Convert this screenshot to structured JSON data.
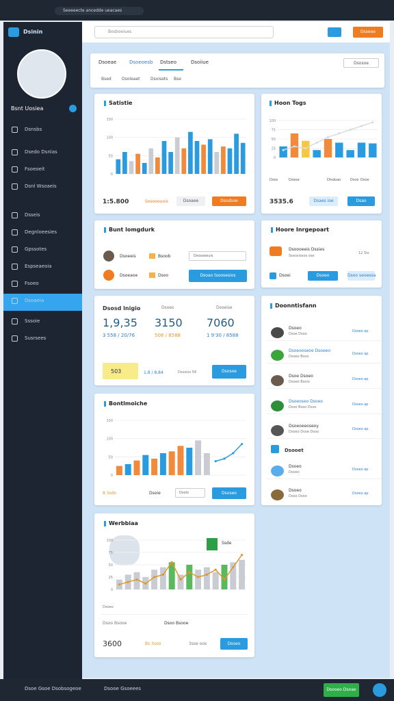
{
  "browser": {
    "address": "Seeeeecte ancedde ueacaes"
  },
  "sidebar": {
    "brand": "Dsinin",
    "user": "Bsnt Uosiea",
    "active": 9,
    "items": [
      "Dsnsbs",
      "Dsedo Dsnlas",
      "Fsoeoeit",
      "Dsnl Wsoaeis",
      "Dsseis",
      "Degnloeesies",
      "Gpssotes",
      "Espseaeoia",
      "Fsoeo",
      "Dsoaeia",
      "Sssoie",
      "Susrsees"
    ]
  },
  "header": {
    "search": "Bosboeiues",
    "button": "Dsseee"
  },
  "tabs": {
    "items": [
      "Dsoeae",
      "Dsoeoesb",
      "Dstseo",
      "Dsoiiue"
    ],
    "filters": [
      "Bsed",
      "Dsoleaet",
      "Dsoisets",
      "Bse"
    ],
    "button": "Dsosoe"
  },
  "card1": {
    "title": "Satistie",
    "total": "1:5.800",
    "sub": "Sosooeuois",
    "buttons": [
      "Dsoaee",
      "Dsodsoe"
    ],
    "chart": {
      "type": "bar",
      "ylim": [
        0,
        150
      ],
      "yticks": [
        0,
        50,
        100,
        150
      ],
      "values": [
        40,
        60,
        35,
        55,
        30,
        70,
        45,
        90,
        60,
        100,
        70,
        115,
        90,
        80,
        95,
        60,
        75,
        70,
        110,
        85
      ],
      "colors": [
        "#2b9be0",
        "#2b9be0",
        "#c9ccd3",
        "#f08a3c",
        "#2b9be0",
        "#c9ccd3",
        "#f08a3c",
        "#2b9be0",
        "#2b9be0",
        "#c9ccd3",
        "#f08a3c",
        "#2b9be0",
        "#2b9be0",
        "#f08a3c",
        "#2b9be0",
        "#c9ccd3",
        "#f08a3c",
        "#2b9be0",
        "#2b9be0",
        "#2b9be0"
      ]
    }
  },
  "card2": {
    "title": "Hoon Togs",
    "legend": [
      "Dsos",
      "Dseoe",
      "Dlsdoao",
      "Dsoo",
      "Dsoo"
    ],
    "total": "3535.6",
    "buttons": [
      "Dsaes ioe",
      "Dsao"
    ],
    "chart": {
      "type": "bar",
      "ylim": [
        0,
        100
      ],
      "yticks": [
        0,
        25,
        50,
        75,
        100
      ],
      "values": [
        30,
        65,
        45,
        20,
        50,
        40,
        20,
        40,
        38
      ],
      "colors": [
        "#2b9be0",
        "#f08a3c",
        "#f5c842",
        "#2b9be0",
        "#f08a3c",
        "#2b9be0",
        "#2b9be0",
        "#2b9be0",
        "#2b9be0"
      ],
      "line": {
        "color": "#d7dbe2",
        "values": [
          20,
          30,
          25,
          40,
          55,
          65,
          75,
          85,
          95
        ]
      }
    }
  },
  "card3": {
    "title": "Bunt lomgdurk",
    "rows": [
      {
        "name": "Dsoeeis",
        "tag": "Bsoob",
        "action": "Dsosoeeuis"
      },
      {
        "name": "Dsoeaoe",
        "tag": "Dsoo",
        "action": "Dsoao tsoosesios"
      }
    ]
  },
  "card4": {
    "title": "Hoore Inrgepoart",
    "rows": [
      {
        "name": "Dsoooeeis Dssies",
        "sub": "Sseosiseos ose",
        "value": "12 5lo"
      },
      {
        "name": "Dsoei",
        "action": "Dsoeo",
        "value": "Dsoo seoeesa"
      }
    ]
  },
  "card5": {
    "title": "Dsosd lnigio",
    "heads": [
      "Dsoes",
      "Dsoeise"
    ],
    "stats": [
      {
        "big": "1,9,35",
        "sub": "3 558 / 20/76"
      },
      {
        "big": "3150",
        "sub": "508 / 8588"
      },
      {
        "big": "7060",
        "sub": "1 9'30 / 8588"
      }
    ],
    "badge": "503",
    "note": "1,8 / 8,84",
    "note2": "Dsosios 58",
    "button": "Dsosoe"
  },
  "card6": {
    "title": "Doonntisfann",
    "section": "Dsooet",
    "items": [
      {
        "name": "Dsoeo",
        "sub": "Dsoe Dsoo",
        "action": "Dsoeo ap"
      },
      {
        "name": "Dsoeooseoe Dsoeeo",
        "sub": "Dsoeo Bsoo",
        "action": "Dsoeo ap"
      },
      {
        "name": "Dsoe Dsoeo",
        "sub": "Dsoeo Bsoio",
        "action": "Dsoeo ap"
      },
      {
        "name": "Dsoeoseo Dsoeo",
        "sub": "Dsoo Bsoo Dsoo",
        "action": "Dsoeo ap"
      },
      {
        "name": "Dsoeoeeoseoy",
        "sub": "Dsoeo Dsoe Dsoo",
        "action": "Dsoeo ap"
      },
      {
        "name": "Dsoeo",
        "sub": "Dsoeo",
        "action": "Dsoeo ap"
      },
      {
        "name": "Dsoeo",
        "sub": "Dsoo Dsoo",
        "action": "Dsoeo ap"
      }
    ]
  },
  "card7": {
    "title": "Bontlmoiche",
    "foot": [
      "8 3sdo",
      "Dsoie",
      "Dsoio"
    ],
    "button": "Dsoseo",
    "chart": {
      "type": "bar",
      "ylim": [
        0,
        150
      ],
      "yticks": [
        0,
        50,
        100,
        150
      ],
      "values": [
        25,
        30,
        40,
        55,
        45,
        60,
        65,
        80,
        75,
        95,
        60,
        null,
        null,
        null,
        null
      ],
      "colors": [
        "#f08a3c",
        "#2b9be0",
        "#f08a3c",
        "#2b9be0",
        "#f08a3c",
        "#2b9be0",
        "#f08a3c",
        "#f08a3c",
        "#2b9be0",
        "#c9ccd3",
        "#c9ccd3",
        "#2b9be0",
        "#2b9be0",
        "#2b9be0",
        "#2b9be0"
      ],
      "line": {
        "color": "#2b9be0",
        "values": [
          null,
          null,
          null,
          null,
          null,
          null,
          null,
          null,
          null,
          null,
          null,
          38,
          45,
          60,
          85
        ]
      }
    }
  },
  "card8": {
    "title": "Werbbiaa",
    "legend": "Ssde",
    "label": "Dsoeo",
    "caption": "Dsoo Bsooe",
    "total": "3600",
    "notes": [
      "Bs 3soo",
      "3sse oos"
    ],
    "button": "Dsoeo",
    "chart": {
      "type": "bar",
      "ylim": [
        0,
        100
      ],
      "yticks": [
        0,
        25,
        50,
        75,
        100
      ],
      "values": [
        20,
        30,
        35,
        25,
        40,
        45,
        55,
        30,
        50,
        40,
        45,
        35,
        50,
        55,
        60
      ],
      "colors": [
        "#c9ccd3",
        "#c9ccd3",
        "#c9ccd3",
        "#c9ccd3",
        "#c9ccd3",
        "#c9ccd3",
        "#5cb85c",
        "#c9ccd3",
        "#5cb85c",
        "#c9ccd3",
        "#c9ccd3",
        "#c9ccd3",
        "#5cb85c",
        "#c9ccd3",
        "#c9ccd3"
      ],
      "line": {
        "color": "#e0962d",
        "values": [
          10,
          15,
          20,
          12,
          25,
          30,
          55,
          20,
          35,
          25,
          30,
          40,
          20,
          45,
          70
        ]
      }
    }
  },
  "footer": {
    "left": "Dsoe Gsoe Dsobsogeoe",
    "mid": "Dsooe Gsoeees",
    "button": "Dsooeo Dsoae"
  }
}
